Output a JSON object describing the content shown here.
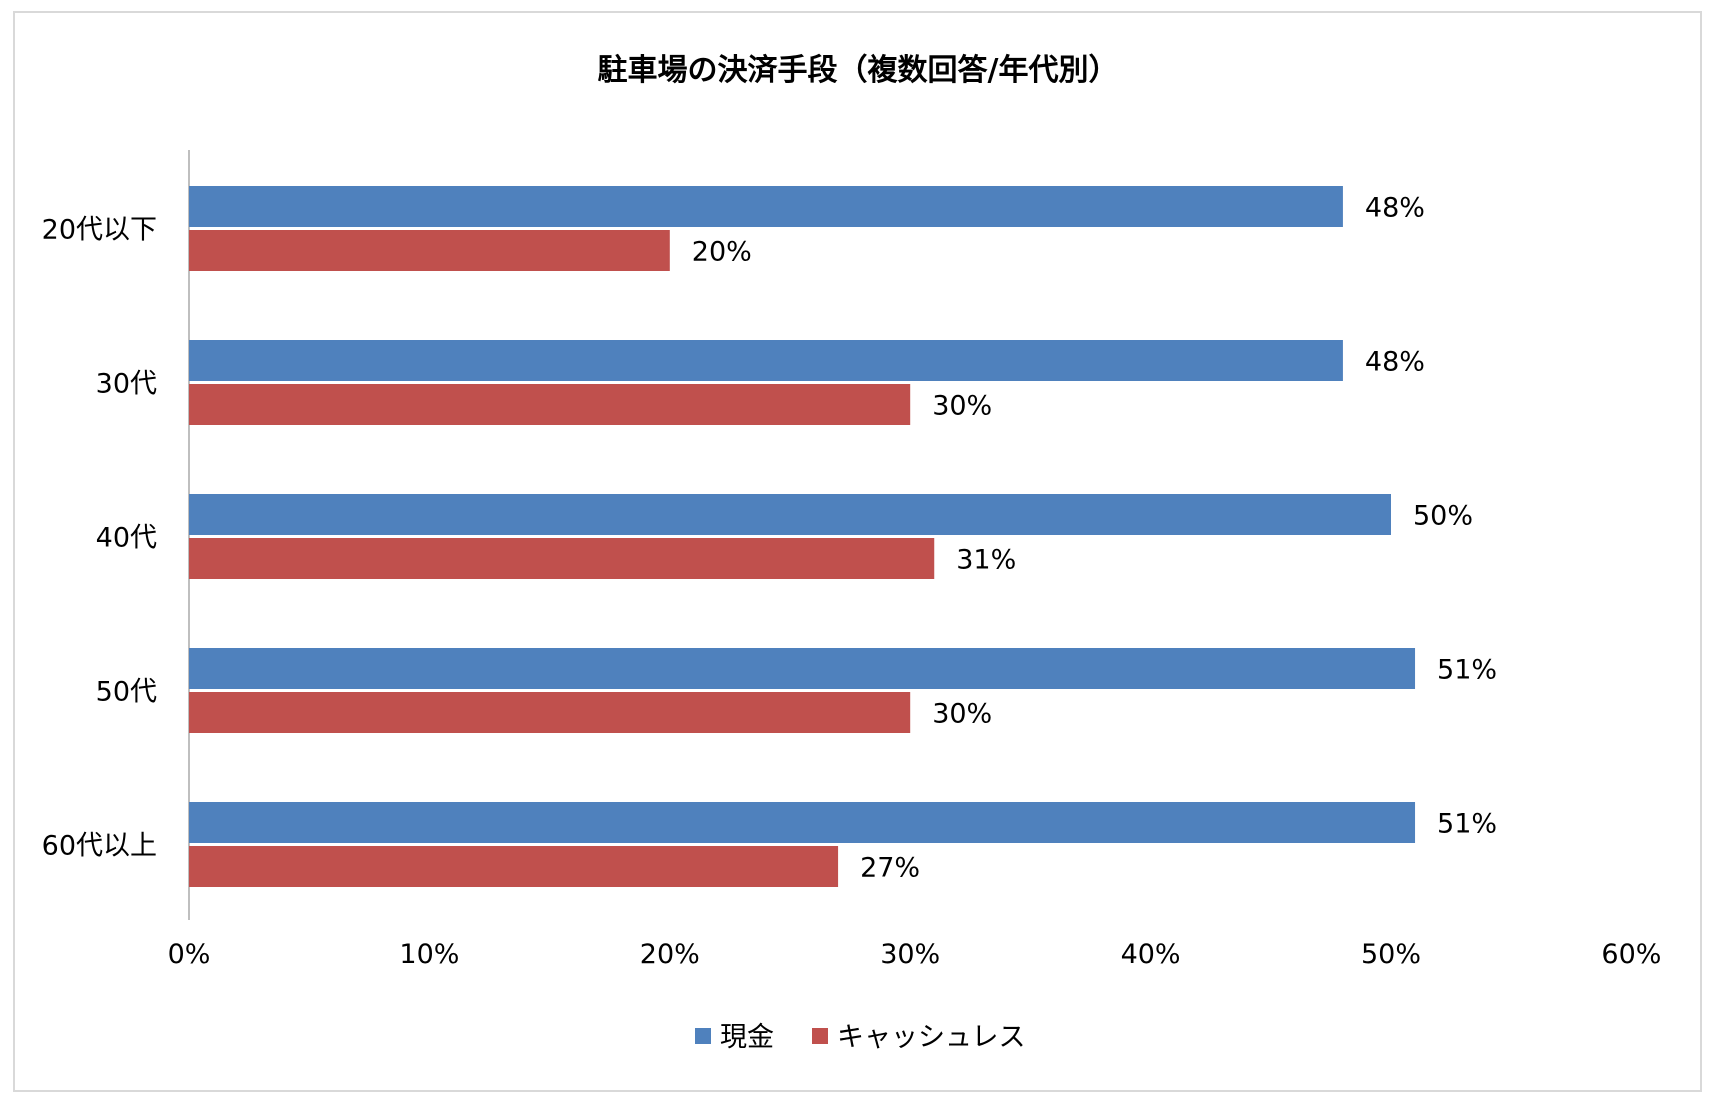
{
  "chart_data": {
    "type": "bar",
    "orientation": "horizontal",
    "title": "駐車場の決済手段（複数回答/年代別）",
    "categories": [
      "20代以下",
      "30代",
      "40代",
      "50代",
      "60代以上"
    ],
    "series": [
      {
        "name": "現金",
        "color": "#4f81bd",
        "values": [
          48,
          48,
          50,
          51,
          51
        ],
        "labels": [
          "48%",
          "48%",
          "50%",
          "51%",
          "51%"
        ]
      },
      {
        "name": "キャッシュレス",
        "color": "#c0504d",
        "values": [
          20,
          30,
          31,
          30,
          27
        ],
        "labels": [
          "20%",
          "30%",
          "31%",
          "30%",
          "27%"
        ]
      }
    ],
    "xlim": [
      0,
      60
    ],
    "xticks": [
      0,
      10,
      20,
      30,
      40,
      50,
      60
    ],
    "xtick_labels": [
      "0%",
      "10%",
      "20%",
      "30%",
      "40%",
      "50%",
      "60%"
    ],
    "xlabel": "",
    "ylabel": "",
    "grid": false,
    "legend_position": "bottom"
  }
}
